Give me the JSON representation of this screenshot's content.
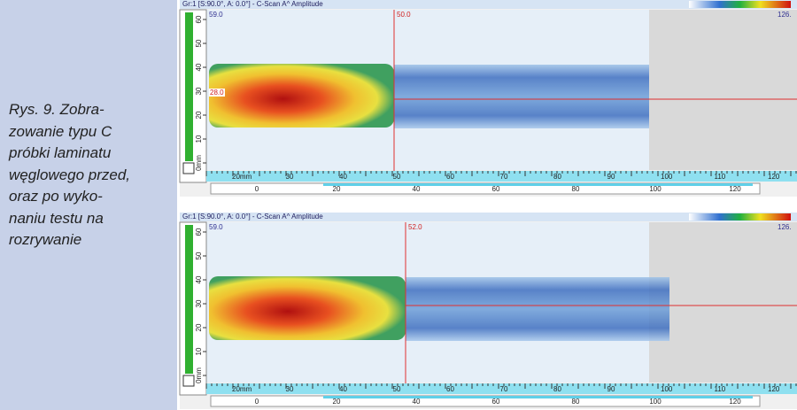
{
  "caption": {
    "lines": [
      "Rys. 9. Zobra-",
      "zowanie typu C",
      "próbki laminatu",
      "węglowego przed,",
      "oraz po wyko-",
      "naniu testu na",
      "rozrywanie"
    ]
  },
  "scans": [
    {
      "header": "Gr:1 [S:90.0°, A: 0.0°] - C-Scan A^ Amplitude",
      "max_label": "59.0",
      "cursor_label": "50.0",
      "range_label": "126.",
      "level_label": "28.0",
      "y_ruler": [
        "60",
        "50",
        "40",
        "30",
        "20",
        "10",
        "0mm"
      ],
      "x_ruler": [
        "20mm",
        "30",
        "40",
        "50",
        "60",
        "70",
        "80",
        "90",
        "100",
        "110",
        "120"
      ],
      "index_ruler": [
        "0",
        "20",
        "40",
        "60",
        "80",
        "100",
        "120"
      ]
    },
    {
      "header": "Gr:1 [S:90.0°, A: 0.0°] - C-Scan A^ Amplitude",
      "max_label": "59.0",
      "cursor_label": "52.0",
      "range_label": "126.",
      "y_ruler": [
        "60",
        "50",
        "40",
        "30",
        "20",
        "10",
        "0mm"
      ],
      "x_ruler": [
        "20mm",
        "30",
        "40",
        "50",
        "60",
        "70",
        "80",
        "90",
        "100",
        "110",
        "120"
      ],
      "index_ruler": [
        "0",
        "20",
        "40",
        "60",
        "80",
        "100",
        "120"
      ]
    }
  ]
}
